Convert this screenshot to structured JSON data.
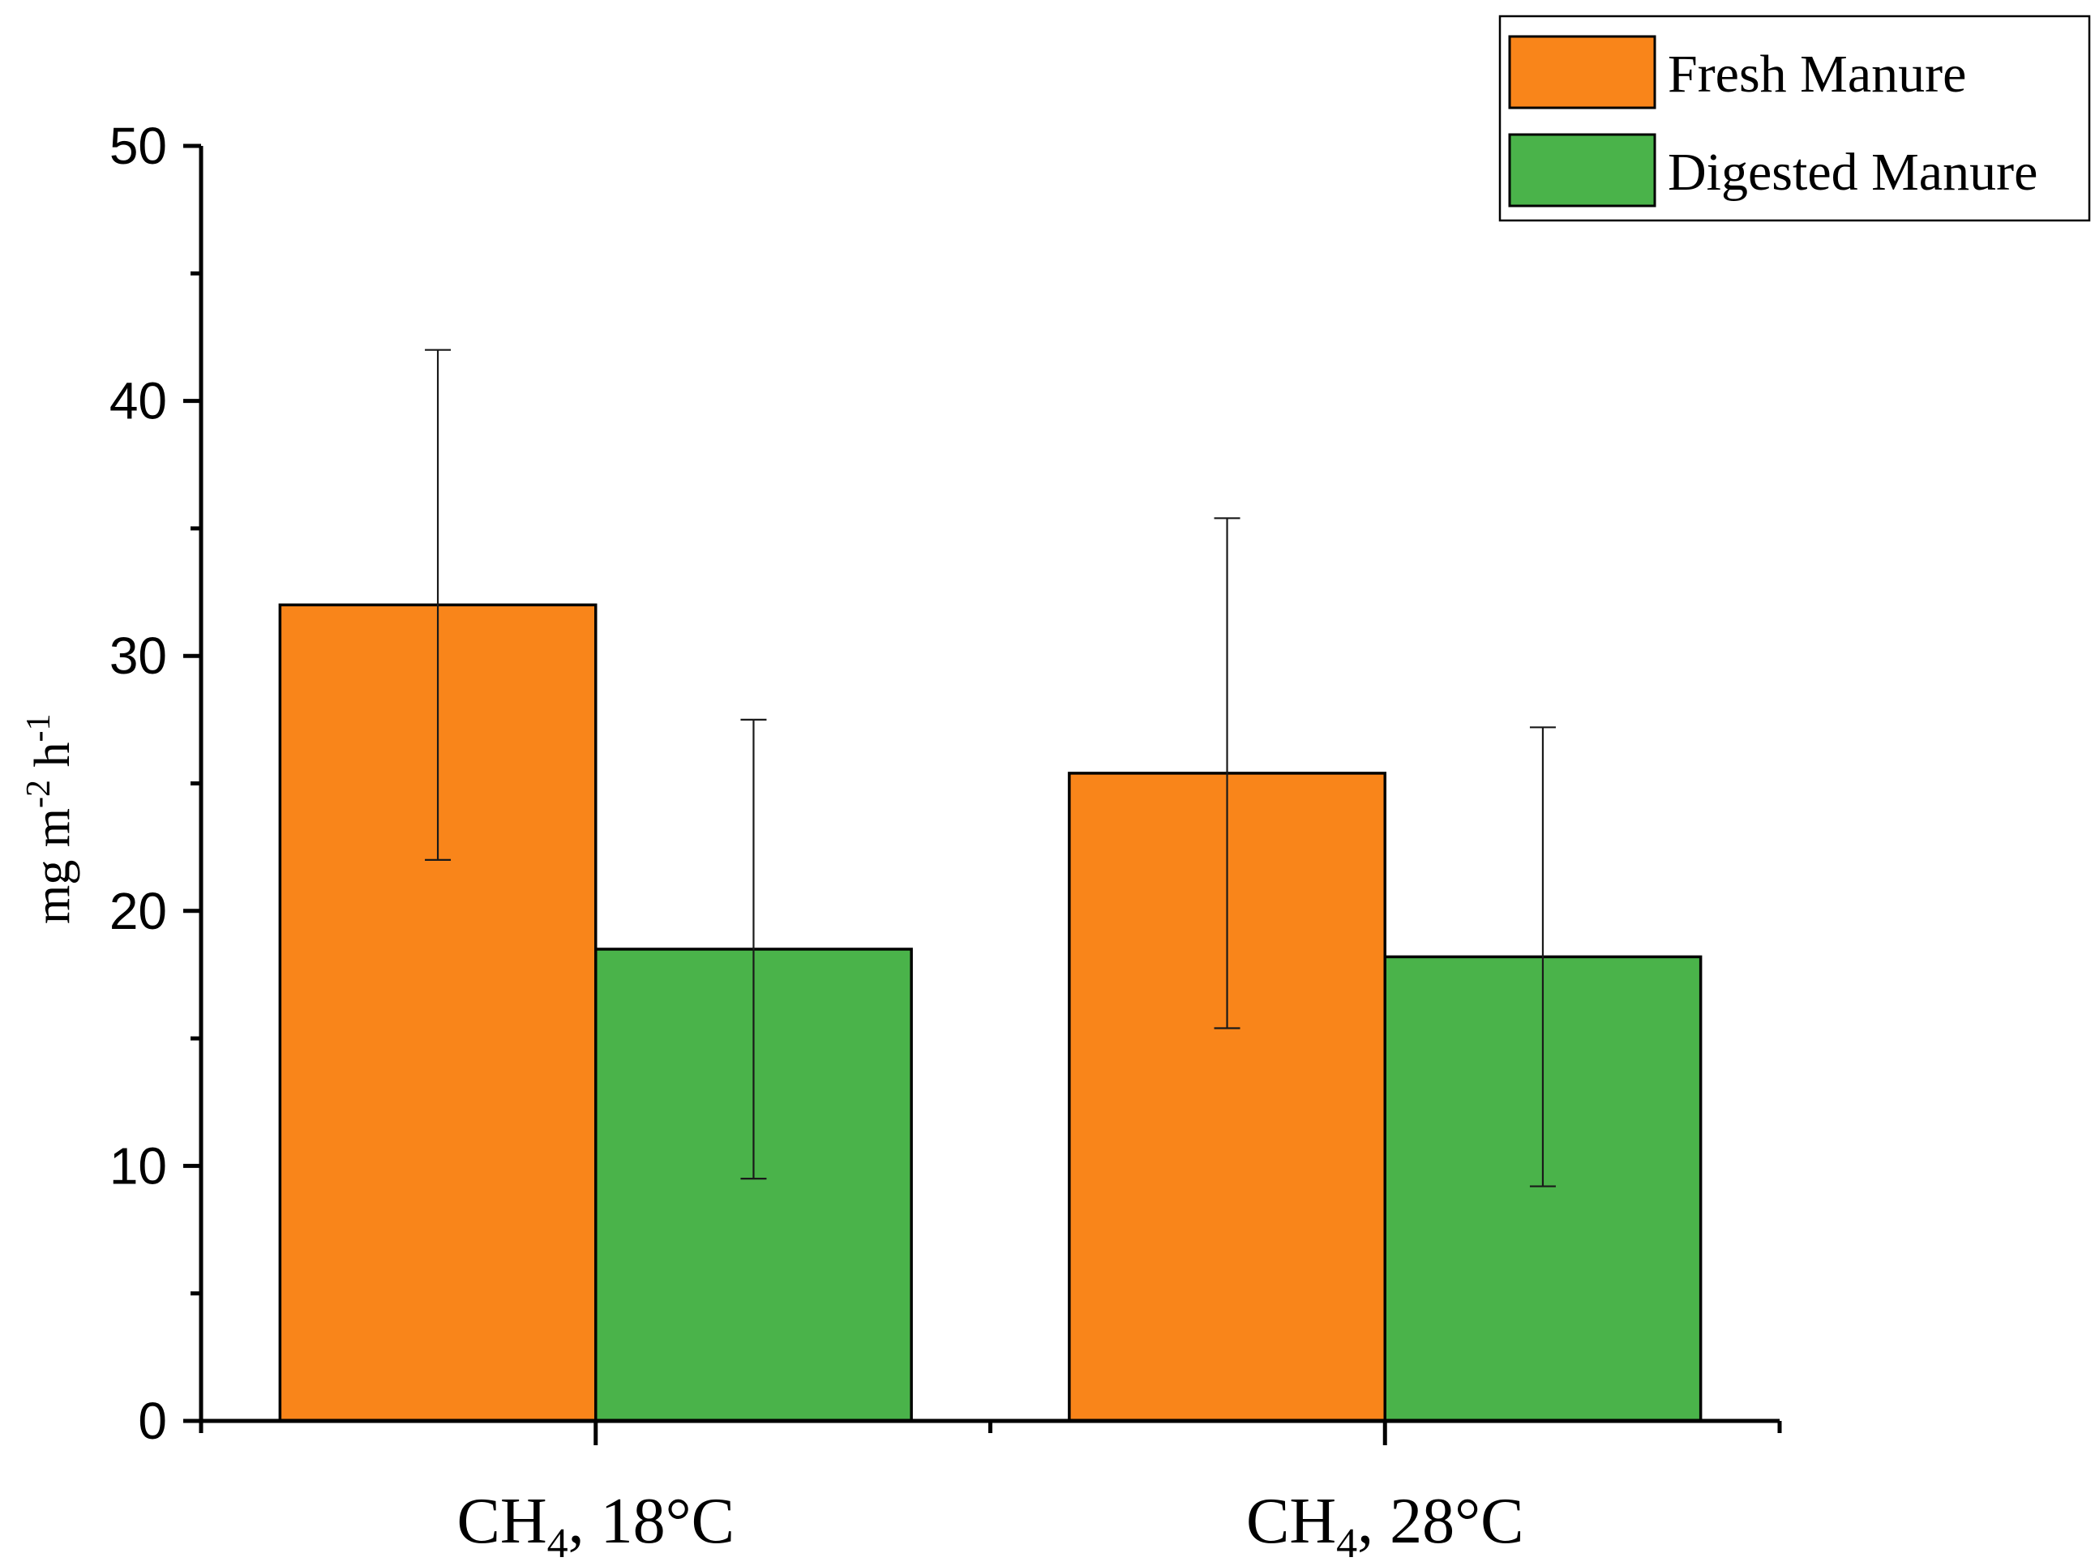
{
  "chart_data": {
    "type": "bar",
    "title": "",
    "xlabel": "",
    "ylabel": "mg m-2 h-1",
    "ylabel_parts": {
      "a": "mg m",
      "b": "-2",
      "c": " h",
      "d": "-1"
    },
    "ylim": [
      0,
      50
    ],
    "yticks": [
      0,
      10,
      20,
      30,
      40,
      50
    ],
    "categories": [
      "CH4, 18°C",
      "CH4, 28°C"
    ],
    "category_parts": [
      {
        "main": "CH",
        "sub": "4",
        "rest": ", 18°C"
      },
      {
        "main": "CH",
        "sub": "4",
        "rest": ", 28°C"
      }
    ],
    "series": [
      {
        "name": "Fresh Manure",
        "color": "#f9851a",
        "values": [
          32.0,
          25.4
        ],
        "error_low": [
          22.0,
          15.4
        ],
        "error_high": [
          42.0,
          35.4
        ]
      },
      {
        "name": "Digested Manure",
        "color": "#4ab34a",
        "values": [
          18.5,
          18.2
        ],
        "error_low": [
          9.5,
          9.2
        ],
        "error_high": [
          27.5,
          27.2
        ]
      }
    ],
    "legend_position": "top-right",
    "grid": false
  }
}
